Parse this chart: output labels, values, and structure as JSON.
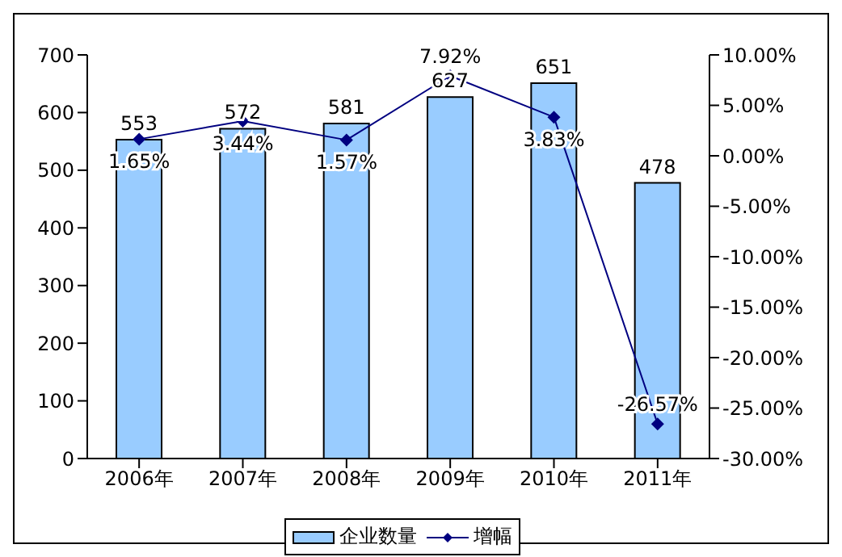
{
  "chart_data": {
    "type": "bar",
    "categories": [
      "2006年",
      "2007年",
      "2008年",
      "2009年",
      "2010年",
      "2011年"
    ],
    "series": [
      {
        "name": "企业数量",
        "color": "#99ccff",
        "values": [
          553,
          572,
          581,
          627,
          651,
          478
        ],
        "value_labels": [
          "553",
          "572",
          "581",
          "627",
          "651",
          "478"
        ]
      },
      {
        "name": "增幅",
        "type": "line",
        "axis": "y2",
        "color": "#000080",
        "marker": "diamond",
        "values": [
          1.65,
          3.44,
          1.57,
          7.92,
          3.83,
          -26.57
        ],
        "value_labels": [
          "1.65%",
          "3.44%",
          "1.57%",
          "7.92%",
          "3.83%",
          "-26.57%"
        ]
      }
    ],
    "ylim": [
      0,
      700
    ],
    "yticks": [
      0,
      100,
      200,
      300,
      400,
      500,
      600,
      700
    ],
    "y2lim": [
      -30,
      10
    ],
    "y2ticks": [
      {
        "value": -30,
        "label": "-30.00%"
      },
      {
        "value": -25,
        "label": "-25.00%"
      },
      {
        "value": -20,
        "label": "-20.00%"
      },
      {
        "value": -15,
        "label": "-15.00%"
      },
      {
        "value": -10,
        "label": "-10.00%"
      },
      {
        "value": -5,
        "label": "-5.00%"
      },
      {
        "value": 0,
        "label": "0.00%"
      },
      {
        "value": 5,
        "label": "5.00%"
      },
      {
        "value": 10,
        "label": "10.00%"
      }
    ],
    "grid": false,
    "legend": "bottom"
  }
}
